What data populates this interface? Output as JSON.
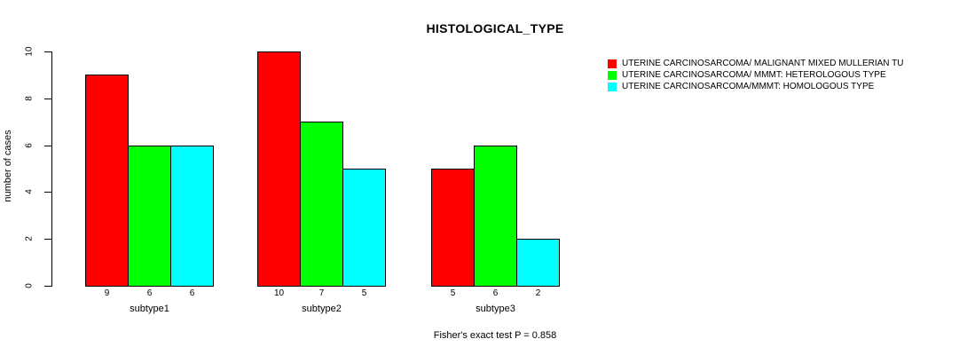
{
  "chart_data": {
    "type": "bar",
    "grouped": true,
    "title": "HISTOLOGICAL_TYPE",
    "ylabel": "number of cases",
    "ylim": [
      0,
      10
    ],
    "yticks": [
      "0",
      "2",
      "4",
      "6",
      "8",
      "10"
    ],
    "grid": false,
    "legend_position": "right",
    "categories": [
      "subtype1",
      "subtype2",
      "subtype3"
    ],
    "series": [
      {
        "name": "UTERINE CARCINOSARCOMA/ MALIGNANT MIXED MULLERIAN TU",
        "color": "#ff0000",
        "values": [
          9,
          10,
          5
        ]
      },
      {
        "name": "UTERINE CARCINOSARCOMA/ MMMT: HETEROLOGOUS TYPE",
        "color": "#00ff00",
        "values": [
          6,
          7,
          6
        ]
      },
      {
        "name": "UTERINE CARCINOSARCOMA/MMMT: HOMOLOGOUS TYPE",
        "color": "#00ffff",
        "values": [
          6,
          5,
          2
        ]
      }
    ],
    "bar_value_labels": [
      [
        "9",
        "6",
        "6"
      ],
      [
        "10",
        "7",
        "5"
      ],
      [
        "5",
        "6",
        "2"
      ]
    ],
    "annotation": "Fisher's exact test P = 0.858",
    "bar_border_color": "#000000"
  }
}
